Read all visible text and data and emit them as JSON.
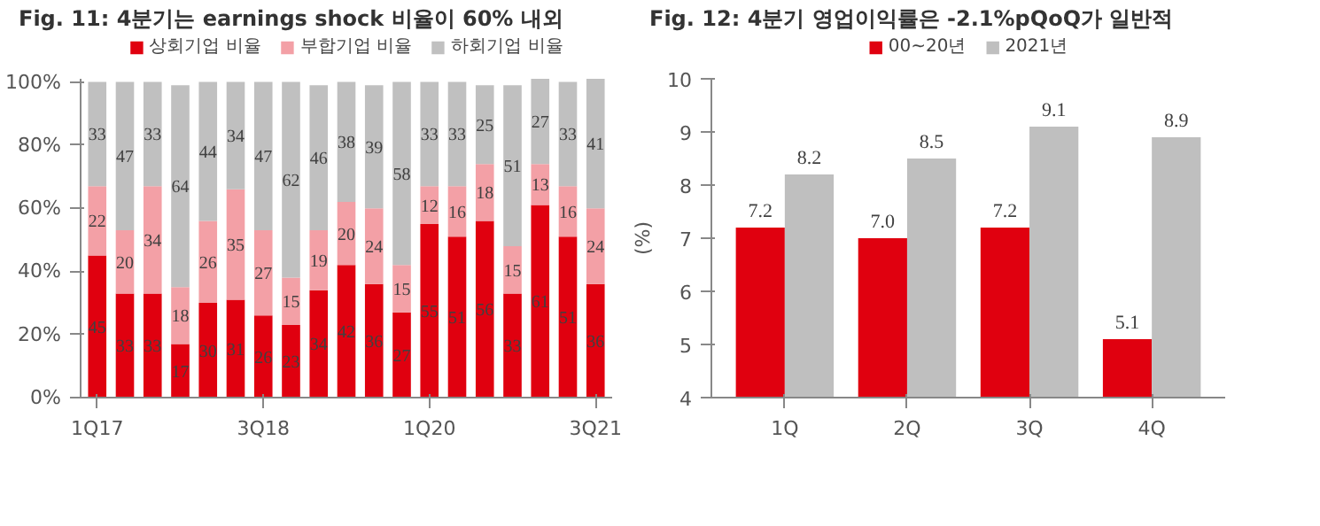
{
  "chart_data": [
    {
      "type": "bar",
      "title": "Fig. 11: 4분기는 earnings shock 비율이 60% 내외",
      "stacked": true,
      "data_labels": true,
      "legend": "top",
      "grid": false,
      "categories": [
        "1Q17",
        null,
        null,
        null,
        null,
        null,
        "3Q18",
        null,
        null,
        null,
        null,
        null,
        "1Q20",
        null,
        null,
        null,
        null,
        null,
        "3Q21"
      ],
      "ylim": [
        0,
        101
      ],
      "yticks": [
        {
          "value": 0,
          "label": "0%"
        },
        {
          "value": 20,
          "label": "20%"
        },
        {
          "value": 40,
          "label": "40%"
        },
        {
          "value": 60,
          "label": "60%"
        },
        {
          "value": 80,
          "label": "80%"
        },
        {
          "value": 100,
          "label": "100%"
        }
      ],
      "series": [
        {
          "name": "상회기업 비율",
          "color": "#e0000f",
          "values": [
            45,
            33,
            33,
            17,
            30,
            31,
            26,
            23,
            34,
            42,
            36,
            27,
            55,
            51,
            56,
            33,
            61,
            51,
            36
          ]
        },
        {
          "name": "부합기업 비율",
          "color": "#f3a0a6",
          "values": [
            22,
            20,
            34,
            18,
            26,
            35,
            27,
            15,
            19,
            20,
            24,
            15,
            12,
            16,
            18,
            15,
            13,
            16,
            24
          ]
        },
        {
          "name": "하회기업 비율",
          "color": "#c0c0c0",
          "values": [
            33,
            47,
            33,
            64,
            44,
            34,
            47,
            62,
            46,
            38,
            39,
            58,
            33,
            33,
            25,
            51,
            27,
            33,
            41
          ]
        }
      ]
    },
    {
      "type": "bar",
      "title": "Fig. 12: 4분기 영업이익률은 -2.1%pQoQ가 일반적",
      "ylabel": "(%)",
      "legend": "top",
      "grid": false,
      "categories": [
        "1Q",
        "2Q",
        "3Q",
        "4Q"
      ],
      "ylim": [
        4,
        10
      ],
      "yticks": [
        4,
        5,
        6,
        7,
        8,
        9,
        10
      ],
      "series": [
        {
          "name": "00~20년",
          "color": "#e0000f",
          "values": [
            7.2,
            7.0,
            7.2,
            5.1
          ],
          "value_labels": [
            "7.2",
            "7.0",
            "7.2",
            "5.1"
          ]
        },
        {
          "name": "2021년",
          "color": "#bfbfbf",
          "values": [
            8.2,
            8.5,
            9.1,
            8.9
          ],
          "value_labels": [
            "8.2",
            "8.5",
            "9.1",
            "8.9"
          ]
        }
      ]
    }
  ]
}
